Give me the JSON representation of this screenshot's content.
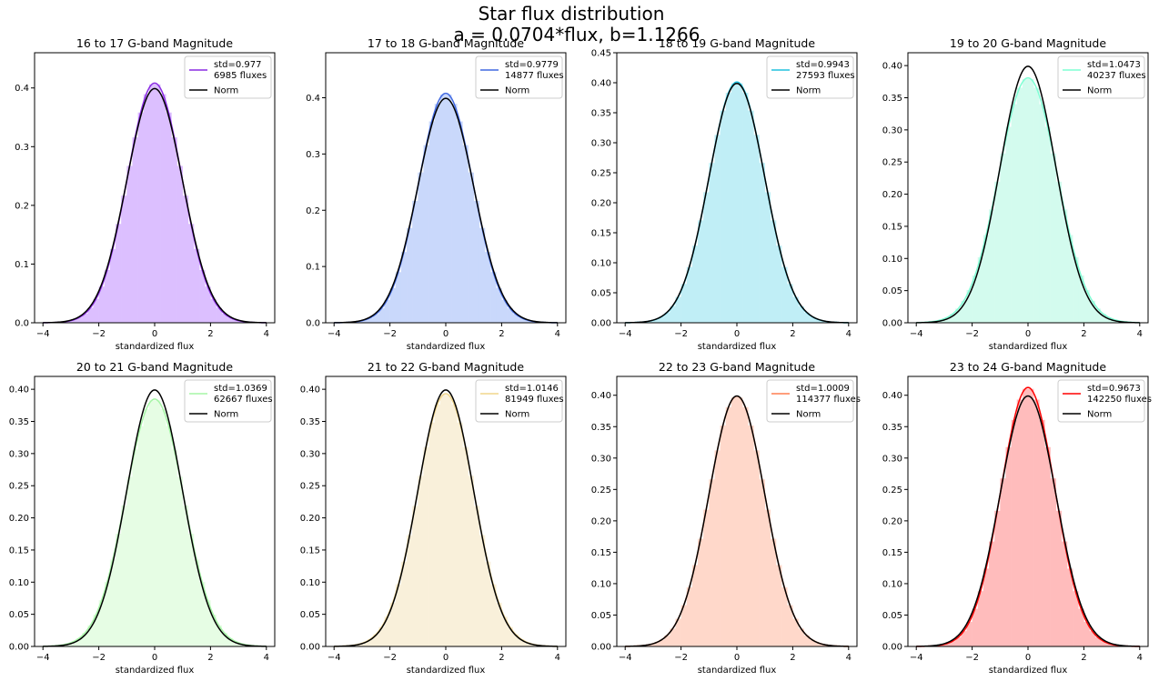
{
  "figure": {
    "title_line1": "Star flux distribution",
    "title_line2": "a = 0.0704*flux, b=1.1266"
  },
  "chart_data": [
    {
      "type": "bar",
      "title": "16 to 17 G-band Magnitude",
      "xlabel": "standardized flux",
      "ylabel": "",
      "xlim": [
        -4.3,
        4.3
      ],
      "ylim": [
        0,
        0.46
      ],
      "xticks": [
        -4,
        -2,
        0,
        2,
        4
      ],
      "yticks": [
        0.0,
        0.1,
        0.2,
        0.3,
        0.4
      ],
      "yticklabels": [
        "0.0",
        "0.1",
        "0.2",
        "0.3",
        "0.4"
      ],
      "color": "#8a2be2",
      "hist_color": "#dcbfff",
      "std": 0.977,
      "count": 6985,
      "legend": [
        "std=0.977\n6985 fluxes",
        "Norm"
      ],
      "legend_position": "upper right"
    },
    {
      "type": "bar",
      "title": "17 to 18 G-band Magnitude",
      "xlabel": "standardized flux",
      "ylabel": "",
      "xlim": [
        -4.3,
        4.3
      ],
      "ylim": [
        0,
        0.48
      ],
      "xticks": [
        -4,
        -2,
        0,
        2,
        4
      ],
      "yticks": [
        0.0,
        0.1,
        0.2,
        0.3,
        0.4
      ],
      "yticklabels": [
        "0.0",
        "0.1",
        "0.2",
        "0.3",
        "0.4"
      ],
      "color": "#4169e1",
      "hist_color": "#c9d8fb",
      "std": 0.9779,
      "count": 14877,
      "legend": [
        "std=0.9779\n14877 fluxes",
        "Norm"
      ],
      "legend_position": "upper right"
    },
    {
      "type": "bar",
      "title": "18 to 19 G-band Magnitude",
      "xlabel": "standardized flux",
      "ylabel": "",
      "xlim": [
        -4.3,
        4.3
      ],
      "ylim": [
        0,
        0.45
      ],
      "xticks": [
        -4,
        -2,
        0,
        2,
        4
      ],
      "yticks": [
        0.0,
        0.05,
        0.1,
        0.15,
        0.2,
        0.25,
        0.3,
        0.35,
        0.4,
        0.45
      ],
      "yticklabels": [
        "0.00",
        "0.05",
        "0.10",
        "0.15",
        "0.20",
        "0.25",
        "0.30",
        "0.35",
        "0.40",
        "0.45"
      ],
      "color": "#20c0de",
      "hist_color": "#c0eef6",
      "std": 0.9943,
      "count": 27593,
      "legend": [
        "std=0.9943\n27593 fluxes",
        "Norm"
      ],
      "legend_position": "upper right"
    },
    {
      "type": "bar",
      "title": "19 to 20 G-band Magnitude",
      "xlabel": "standardized flux",
      "ylabel": "",
      "xlim": [
        -4.3,
        4.3
      ],
      "ylim": [
        0,
        0.42
      ],
      "xticks": [
        -4,
        -2,
        0,
        2,
        4
      ],
      "yticks": [
        0.0,
        0.05,
        0.1,
        0.15,
        0.2,
        0.25,
        0.3,
        0.35,
        0.4
      ],
      "yticklabels": [
        "0.00",
        "0.05",
        "0.10",
        "0.15",
        "0.20",
        "0.25",
        "0.30",
        "0.35",
        "0.40"
      ],
      "color": "#7fffd4",
      "hist_color": "#d3fbee",
      "std": 1.0473,
      "count": 40237,
      "legend": [
        "std=1.0473\n40237 fluxes",
        "Norm"
      ],
      "legend_position": "upper right"
    },
    {
      "type": "bar",
      "title": "20 to 21 G-band Magnitude",
      "xlabel": "standardized flux",
      "ylabel": "",
      "xlim": [
        -4.3,
        4.3
      ],
      "ylim": [
        0,
        0.42
      ],
      "xticks": [
        -4,
        -2,
        0,
        2,
        4
      ],
      "yticks": [
        0.0,
        0.05,
        0.1,
        0.15,
        0.2,
        0.25,
        0.3,
        0.35,
        0.4
      ],
      "yticklabels": [
        "0.00",
        "0.05",
        "0.10",
        "0.15",
        "0.20",
        "0.25",
        "0.30",
        "0.35",
        "0.40"
      ],
      "color": "#a6f5a6",
      "hist_color": "#e6fde4",
      "std": 1.0369,
      "count": 62667,
      "legend": [
        "std=1.0369\n62667 fluxes",
        "Norm"
      ],
      "legend_position": "upper right"
    },
    {
      "type": "bar",
      "title": "21 to 22 G-band Magnitude",
      "xlabel": "standardized flux",
      "ylabel": "",
      "xlim": [
        -4.3,
        4.3
      ],
      "ylim": [
        0,
        0.42
      ],
      "xticks": [
        -4,
        -2,
        0,
        2,
        4
      ],
      "yticks": [
        0.0,
        0.05,
        0.1,
        0.15,
        0.2,
        0.25,
        0.3,
        0.35,
        0.4
      ],
      "yticklabels": [
        "0.00",
        "0.05",
        "0.10",
        "0.15",
        "0.20",
        "0.25",
        "0.30",
        "0.35",
        "0.40"
      ],
      "color": "#f0d58c",
      "hist_color": "#f9f0da",
      "std": 1.0146,
      "count": 81949,
      "legend": [
        "std=1.0146\n81949 fluxes",
        "Norm"
      ],
      "legend_position": "upper right"
    },
    {
      "type": "bar",
      "title": "22 to 23 G-band Magnitude",
      "xlabel": "standardized flux",
      "ylabel": "",
      "xlim": [
        -4.3,
        4.3
      ],
      "ylim": [
        0,
        0.43
      ],
      "xticks": [
        -4,
        -2,
        0,
        2,
        4
      ],
      "yticks": [
        0.0,
        0.05,
        0.1,
        0.15,
        0.2,
        0.25,
        0.3,
        0.35,
        0.4
      ],
      "yticklabels": [
        "0.00",
        "0.05",
        "0.10",
        "0.15",
        "0.20",
        "0.25",
        "0.30",
        "0.35",
        "0.40"
      ],
      "color": "#ff7f50",
      "hist_color": "#ffd8ca",
      "std": 1.0009,
      "count": 114377,
      "legend": [
        "std=1.0009\n114377 fluxes",
        "Norm"
      ],
      "legend_position": "upper right"
    },
    {
      "type": "bar",
      "title": "23 to 24 G-band Magnitude",
      "xlabel": "standardized flux",
      "ylabel": "",
      "xlim": [
        -4.3,
        4.3
      ],
      "ylim": [
        0,
        0.43
      ],
      "xticks": [
        -4,
        -2,
        0,
        2,
        4
      ],
      "yticks": [
        0.0,
        0.05,
        0.1,
        0.15,
        0.2,
        0.25,
        0.3,
        0.35,
        0.4
      ],
      "yticklabels": [
        "0.00",
        "0.05",
        "0.10",
        "0.15",
        "0.20",
        "0.25",
        "0.30",
        "0.35",
        "0.40"
      ],
      "color": "#ff0000",
      "hist_color": "#ffbcbc",
      "std": 0.9673,
      "count": 142250,
      "legend": [
        "std=0.9673\n142250 fluxes",
        "Norm"
      ],
      "legend_position": "upper right"
    }
  ]
}
